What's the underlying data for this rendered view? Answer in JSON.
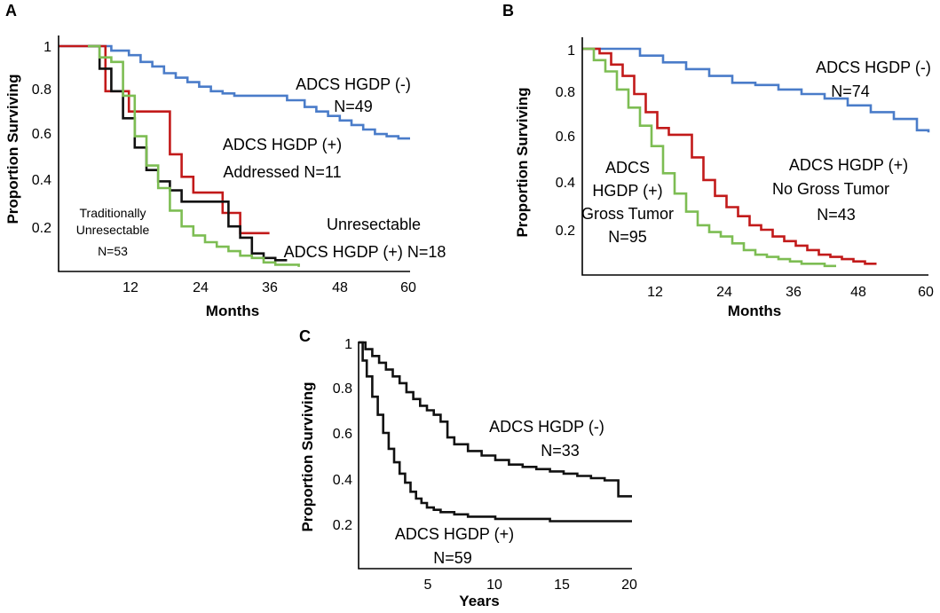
{
  "colors": {
    "blue": "#4A7CC9",
    "red": "#C21A1A",
    "green": "#7DBD53",
    "black": "#111111"
  },
  "chart_data": [
    {
      "id": "A",
      "type": "line",
      "panel_label": "A",
      "xlabel": "Months",
      "ylabel": "Proportion Surviving",
      "xlim": [
        0,
        60
      ],
      "ylim": [
        0,
        1
      ],
      "xticks": [
        "12",
        "24",
        "36",
        "48",
        "60"
      ],
      "yticks": [
        "0.2",
        "0.4",
        "0.6",
        "0.8",
        "1"
      ],
      "series": [
        {
          "name": "ADCS HGDP (-)",
          "color_key": "blue",
          "x": [
            0,
            6,
            9,
            12,
            14,
            16,
            18,
            20,
            22,
            24,
            26,
            28,
            30,
            33,
            36,
            39,
            42,
            44,
            46,
            48,
            50,
            52,
            54,
            56,
            58,
            60
          ],
          "y": [
            1,
            1,
            0.98,
            0.96,
            0.93,
            0.91,
            0.88,
            0.86,
            0.84,
            0.82,
            0.8,
            0.79,
            0.78,
            0.78,
            0.78,
            0.76,
            0.73,
            0.71,
            0.69,
            0.67,
            0.65,
            0.63,
            0.61,
            0.6,
            0.59,
            0.59
          ]
        },
        {
          "name": "ADCS HGDP (+) Addressed N=11",
          "color_key": "red",
          "x": [
            0,
            8,
            10,
            12,
            17,
            19,
            21,
            23,
            25,
            28,
            30,
            31,
            33,
            36
          ],
          "y": [
            1,
            0.8,
            0.8,
            0.71,
            0.71,
            0.52,
            0.42,
            0.35,
            0.35,
            0.26,
            0.26,
            0.17,
            0.17,
            0.17
          ]
        },
        {
          "name": "Unresectable ADCS HGDP (+) N=18",
          "color_key": "black",
          "x": [
            5,
            7,
            9,
            11,
            13,
            15,
            17,
            19,
            21,
            23,
            25,
            27,
            29,
            31,
            33,
            35,
            37,
            39
          ],
          "y": [
            1,
            0.9,
            0.8,
            0.68,
            0.55,
            0.45,
            0.4,
            0.36,
            0.31,
            0.31,
            0.31,
            0.31,
            0.2,
            0.15,
            0.08,
            0.06,
            0.05,
            0.05
          ]
        },
        {
          "name": "Traditionally Unresectable N=53",
          "color_key": "green",
          "x": [
            5,
            7,
            9,
            11,
            13,
            15,
            17,
            19,
            21,
            23,
            25,
            27,
            29,
            31,
            33,
            35,
            37,
            39,
            41
          ],
          "y": [
            1,
            0.95,
            0.93,
            0.78,
            0.6,
            0.47,
            0.37,
            0.27,
            0.2,
            0.16,
            0.13,
            0.11,
            0.09,
            0.07,
            0.06,
            0.04,
            0.03,
            0.03,
            0.02
          ]
        }
      ],
      "annotations": [
        {
          "lines": [
            "ADCS HGDP (-)",
            "N=49"
          ]
        },
        {
          "lines": [
            "ADCS  HGDP (+)",
            "Addressed N=11"
          ]
        },
        {
          "lines": [
            "Unresectable",
            "ADCS HGDP (+)  N=18"
          ]
        },
        {
          "lines": [
            "Traditionally",
            "Unresectable",
            "N=53"
          ]
        }
      ]
    },
    {
      "id": "B",
      "type": "line",
      "panel_label": "B",
      "xlabel": "Months",
      "ylabel": "Proportion Surviving",
      "xlim": [
        0,
        60
      ],
      "ylim": [
        0,
        1
      ],
      "xticks": [
        "12",
        "24",
        "36",
        "48",
        "60"
      ],
      "yticks": [
        "0.2",
        "0.4",
        "0.6",
        "0.8",
        "1"
      ],
      "series": [
        {
          "name": "ADCS HGDP (-) N=74",
          "color_key": "blue",
          "x": [
            0,
            6,
            10,
            14,
            18,
            22,
            26,
            30,
            34,
            38,
            42,
            46,
            50,
            54,
            58,
            60
          ],
          "y": [
            1,
            1,
            0.97,
            0.94,
            0.91,
            0.88,
            0.85,
            0.84,
            0.82,
            0.8,
            0.78,
            0.75,
            0.72,
            0.69,
            0.64,
            0.63
          ]
        },
        {
          "name": "ADCS HGDP (+) No Gross Tumor N=43",
          "color_key": "red",
          "x": [
            0,
            3,
            5,
            7,
            9,
            11,
            13,
            15,
            17,
            19,
            21,
            23,
            25,
            27,
            29,
            31,
            33,
            35,
            37,
            39,
            41,
            43,
            45,
            47,
            49,
            51
          ],
          "y": [
            1,
            0.98,
            0.93,
            0.88,
            0.8,
            0.72,
            0.65,
            0.62,
            0.62,
            0.52,
            0.42,
            0.35,
            0.3,
            0.26,
            0.22,
            0.2,
            0.17,
            0.15,
            0.13,
            0.11,
            0.09,
            0.08,
            0.07,
            0.06,
            0.05,
            0.05
          ]
        },
        {
          "name": "ADCS HGDP (+) Gross Tumor N=95",
          "color_key": "green",
          "x": [
            0,
            2,
            4,
            6,
            8,
            10,
            12,
            14,
            16,
            18,
            20,
            22,
            24,
            26,
            28,
            30,
            32,
            34,
            36,
            38,
            40,
            42,
            44
          ],
          "y": [
            1,
            0.95,
            0.9,
            0.82,
            0.74,
            0.66,
            0.57,
            0.45,
            0.36,
            0.28,
            0.22,
            0.19,
            0.17,
            0.14,
            0.11,
            0.09,
            0.08,
            0.07,
            0.06,
            0.05,
            0.05,
            0.04,
            0.04
          ]
        }
      ],
      "annotations": [
        {
          "lines": [
            "ADCS  HGDP (-)",
            "N=74"
          ]
        },
        {
          "lines": [
            "ADCS  HGDP (+)",
            "No Gross Tumor",
            "N=43"
          ]
        },
        {
          "lines": [
            "ADCS",
            "HGDP (+)",
            "Gross Tumor",
            "N=95"
          ]
        }
      ]
    },
    {
      "id": "C",
      "type": "line",
      "panel_label": "C",
      "xlabel": "Years",
      "ylabel": "Proportion Surviving",
      "xlim": [
        0,
        20
      ],
      "ylim": [
        0,
        1
      ],
      "xticks": [
        "5",
        "10",
        "15",
        "20"
      ],
      "yticks": [
        "0.2",
        "0.4",
        "0.6",
        "0.8",
        "1"
      ],
      "series": [
        {
          "name": "ADCS HGDP (-) N=33",
          "color_key": "black",
          "x": [
            0,
            0.5,
            1,
            1.5,
            2,
            2.5,
            3,
            3.5,
            4,
            4.5,
            5,
            5.5,
            6,
            6.5,
            7,
            8,
            9,
            10,
            11,
            12,
            13,
            14,
            15,
            16,
            17,
            18,
            19,
            20
          ],
          "y": [
            1,
            0.97,
            0.94,
            0.91,
            0.88,
            0.85,
            0.82,
            0.78,
            0.75,
            0.72,
            0.7,
            0.68,
            0.65,
            0.58,
            0.55,
            0.52,
            0.5,
            0.48,
            0.46,
            0.45,
            0.44,
            0.43,
            0.42,
            0.41,
            0.4,
            0.39,
            0.32,
            0.32
          ]
        },
        {
          "name": "ADCS HGDP (+) N=59",
          "color_key": "black",
          "x": [
            0,
            0.3,
            0.6,
            1,
            1.4,
            1.8,
            2.2,
            2.6,
            3,
            3.4,
            3.8,
            4.2,
            4.6,
            5,
            5.5,
            6,
            7,
            8,
            9,
            10,
            12,
            14,
            16,
            18,
            20
          ],
          "y": [
            1,
            0.92,
            0.85,
            0.76,
            0.68,
            0.6,
            0.53,
            0.47,
            0.42,
            0.38,
            0.34,
            0.31,
            0.29,
            0.27,
            0.26,
            0.25,
            0.24,
            0.23,
            0.23,
            0.22,
            0.22,
            0.21,
            0.21,
            0.21,
            0.21
          ]
        }
      ],
      "annotations": [
        {
          "lines": [
            "ADCS HGDP (-)",
            "N=33"
          ]
        },
        {
          "lines": [
            "ADCS HGDP (+)",
            "N=59"
          ]
        }
      ]
    }
  ]
}
